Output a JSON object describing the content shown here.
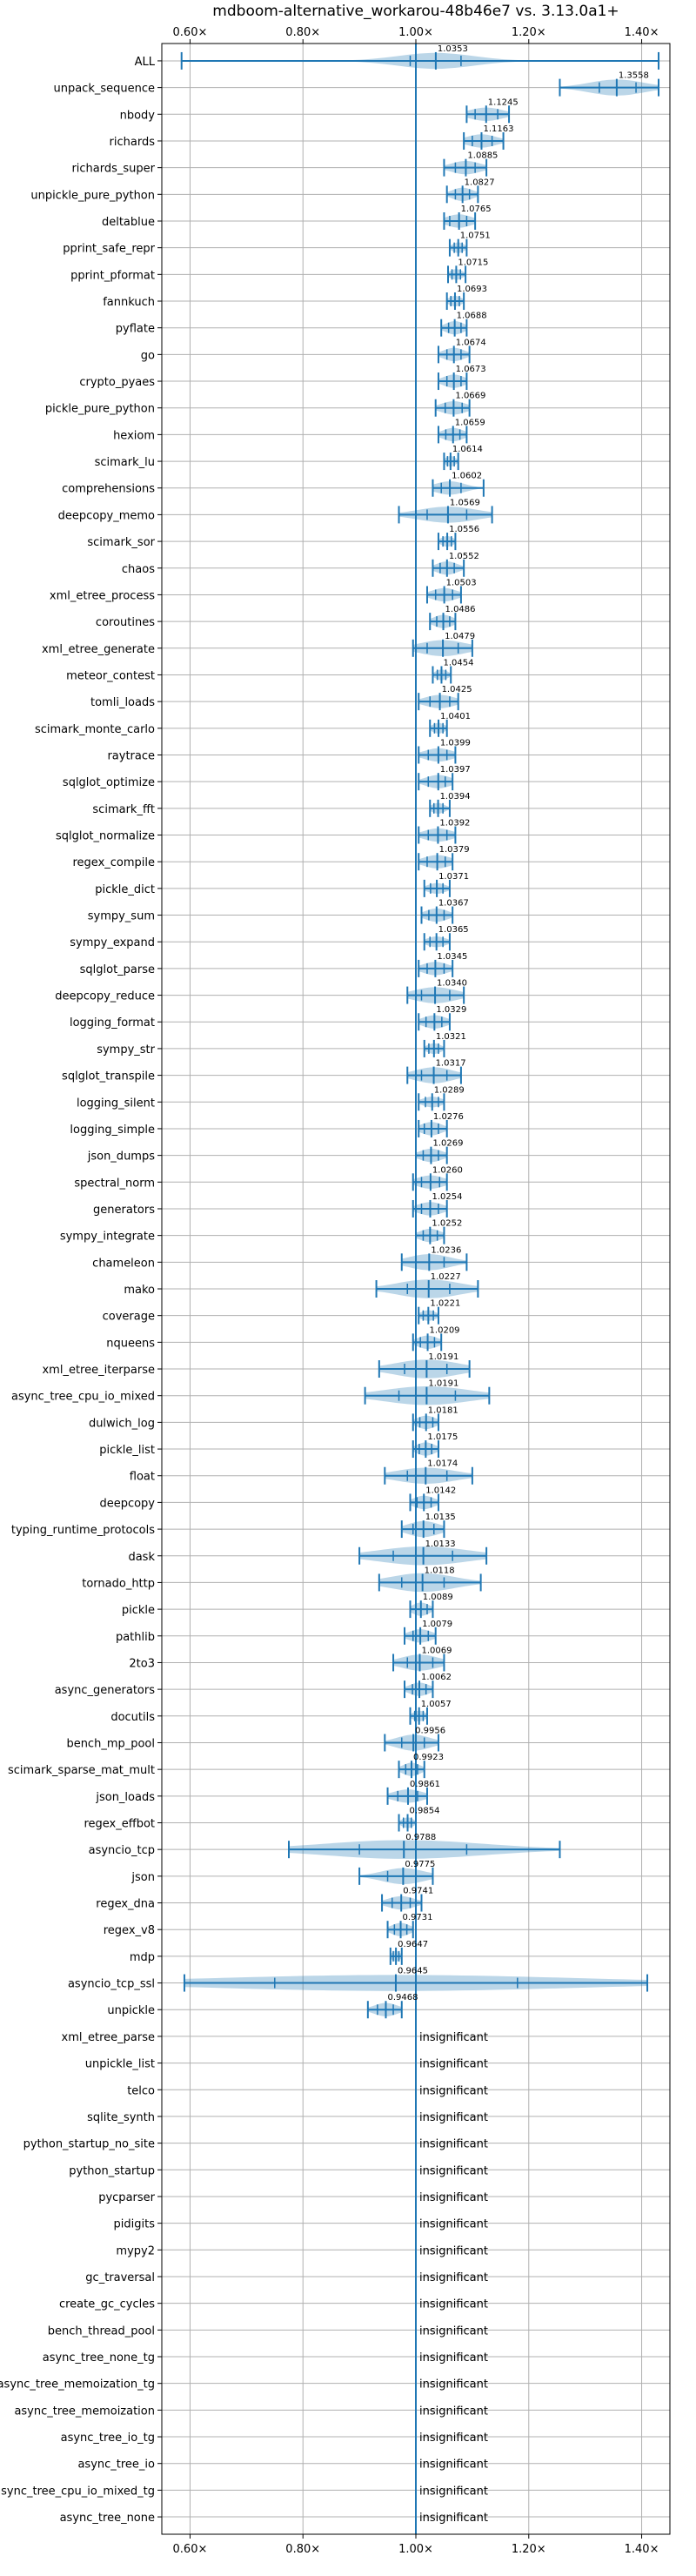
{
  "chart_data": {
    "type": "violin",
    "title": "mdboom-alternative_workarou-48b46e7 vs. 3.13.0a1+",
    "xlim": [
      0.55,
      1.45
    ],
    "x_ticks": [
      0.6,
      0.8,
      1.0,
      1.2,
      1.4
    ],
    "x_tick_labels": [
      "0.60×",
      "0.80×",
      "1.00×",
      "1.20×",
      "1.40×"
    ],
    "reference_value": 1.0,
    "grid": true,
    "insignificant_label": "insignificant",
    "benchmarks": [
      {
        "name": "ALL",
        "median": 1.0353,
        "label": "1.0353",
        "min": 0.585,
        "max": 1.43,
        "q1": 0.99,
        "q3": 1.08,
        "width": 0.6
      },
      {
        "name": "unpack_sequence",
        "median": 1.3558,
        "label": "1.3558",
        "min": 1.255,
        "max": 1.43,
        "q1": 1.325,
        "q3": 1.39,
        "width": 0.6
      },
      {
        "name": "nbody",
        "median": 1.1245,
        "label": "1.1245",
        "min": 1.09,
        "max": 1.165,
        "q1": 1.105,
        "q3": 1.145,
        "width": 0.5
      },
      {
        "name": "richards",
        "median": 1.1163,
        "label": "1.1163",
        "min": 1.085,
        "max": 1.155,
        "q1": 1.1,
        "q3": 1.135,
        "width": 0.5
      },
      {
        "name": "richards_super",
        "median": 1.0885,
        "label": "1.0885",
        "min": 1.05,
        "max": 1.125,
        "q1": 1.07,
        "q3": 1.105,
        "width": 0.5
      },
      {
        "name": "unpickle_pure_python",
        "median": 1.0827,
        "label": "1.0827",
        "min": 1.055,
        "max": 1.11,
        "q1": 1.07,
        "q3": 1.095,
        "width": 0.5
      },
      {
        "name": "deltablue",
        "median": 1.0765,
        "label": "1.0765",
        "min": 1.05,
        "max": 1.105,
        "q1": 1.06,
        "q3": 1.09,
        "width": 0.5
      },
      {
        "name": "pprint_safe_repr",
        "median": 1.0751,
        "label": "1.0751",
        "min": 1.06,
        "max": 1.09,
        "q1": 1.068,
        "q3": 1.082,
        "width": 0.4
      },
      {
        "name": "pprint_pformat",
        "median": 1.0715,
        "label": "1.0715",
        "min": 1.057,
        "max": 1.088,
        "q1": 1.064,
        "q3": 1.079,
        "width": 0.4
      },
      {
        "name": "fannkuch",
        "median": 1.0693,
        "label": "1.0693",
        "min": 1.055,
        "max": 1.085,
        "q1": 1.062,
        "q3": 1.077,
        "width": 0.4
      },
      {
        "name": "pyflate",
        "median": 1.0688,
        "label": "1.0688",
        "min": 1.045,
        "max": 1.09,
        "q1": 1.058,
        "q3": 1.08,
        "width": 0.5
      },
      {
        "name": "go",
        "median": 1.0674,
        "label": "1.0674",
        "min": 1.04,
        "max": 1.095,
        "q1": 1.055,
        "q3": 1.08,
        "width": 0.5
      },
      {
        "name": "crypto_pyaes",
        "median": 1.0673,
        "label": "1.0673",
        "min": 1.04,
        "max": 1.09,
        "q1": 1.055,
        "q3": 1.08,
        "width": 0.5
      },
      {
        "name": "pickle_pure_python",
        "median": 1.0669,
        "label": "1.0669",
        "min": 1.035,
        "max": 1.095,
        "q1": 1.052,
        "q3": 1.082,
        "width": 0.5
      },
      {
        "name": "hexiom",
        "median": 1.0659,
        "label": "1.0659",
        "min": 1.04,
        "max": 1.09,
        "q1": 1.053,
        "q3": 1.078,
        "width": 0.5
      },
      {
        "name": "scimark_lu",
        "median": 1.0614,
        "label": "1.0614",
        "min": 1.05,
        "max": 1.075,
        "q1": 1.056,
        "q3": 1.068,
        "width": 0.4
      },
      {
        "name": "comprehensions",
        "median": 1.0602,
        "label": "1.0602",
        "min": 1.03,
        "max": 1.12,
        "q1": 1.045,
        "q3": 1.08,
        "width": 0.5
      },
      {
        "name": "deepcopy_memo",
        "median": 1.0569,
        "label": "1.0569",
        "min": 0.97,
        "max": 1.135,
        "q1": 1.02,
        "q3": 1.09,
        "width": 0.6
      },
      {
        "name": "scimark_sor",
        "median": 1.0556,
        "label": "1.0556",
        "min": 1.04,
        "max": 1.07,
        "q1": 1.048,
        "q3": 1.063,
        "width": 0.4
      },
      {
        "name": "chaos",
        "median": 1.0552,
        "label": "1.0552",
        "min": 1.03,
        "max": 1.085,
        "q1": 1.043,
        "q3": 1.068,
        "width": 0.5
      },
      {
        "name": "xml_etree_process",
        "median": 1.0503,
        "label": "1.0503",
        "min": 1.02,
        "max": 1.08,
        "q1": 1.035,
        "q3": 1.065,
        "width": 0.5
      },
      {
        "name": "coroutines",
        "median": 1.0486,
        "label": "1.0486",
        "min": 1.025,
        "max": 1.07,
        "q1": 1.037,
        "q3": 1.06,
        "width": 0.5
      },
      {
        "name": "xml_etree_generate",
        "median": 1.0479,
        "label": "1.0479",
        "min": 0.995,
        "max": 1.1,
        "q1": 1.02,
        "q3": 1.075,
        "width": 0.6
      },
      {
        "name": "meteor_contest",
        "median": 1.0454,
        "label": "1.0454",
        "min": 1.03,
        "max": 1.062,
        "q1": 1.038,
        "q3": 1.053,
        "width": 0.4
      },
      {
        "name": "tomli_loads",
        "median": 1.0425,
        "label": "1.0425",
        "min": 1.005,
        "max": 1.075,
        "q1": 1.025,
        "q3": 1.06,
        "width": 0.5
      },
      {
        "name": "scimark_monte_carlo",
        "median": 1.0401,
        "label": "1.0401",
        "min": 1.025,
        "max": 1.055,
        "q1": 1.033,
        "q3": 1.048,
        "width": 0.4
      },
      {
        "name": "raytrace",
        "median": 1.0399,
        "label": "1.0399",
        "min": 1.005,
        "max": 1.07,
        "q1": 1.022,
        "q3": 1.055,
        "width": 0.5
      },
      {
        "name": "sqlglot_optimize",
        "median": 1.0397,
        "label": "1.0397",
        "min": 1.005,
        "max": 1.065,
        "q1": 1.022,
        "q3": 1.052,
        "width": 0.5
      },
      {
        "name": "scimark_fft",
        "median": 1.0394,
        "label": "1.0394",
        "min": 1.025,
        "max": 1.06,
        "q1": 1.032,
        "q3": 1.048,
        "width": 0.4
      },
      {
        "name": "sqlglot_normalize",
        "median": 1.0392,
        "label": "1.0392",
        "min": 1.005,
        "max": 1.07,
        "q1": 1.022,
        "q3": 1.055,
        "width": 0.5
      },
      {
        "name": "regex_compile",
        "median": 1.0379,
        "label": "1.0379",
        "min": 1.005,
        "max": 1.065,
        "q1": 1.02,
        "q3": 1.052,
        "width": 0.5
      },
      {
        "name": "pickle_dict",
        "median": 1.0371,
        "label": "1.0371",
        "min": 1.015,
        "max": 1.06,
        "q1": 1.026,
        "q3": 1.048,
        "width": 0.4
      },
      {
        "name": "sympy_sum",
        "median": 1.0367,
        "label": "1.0367",
        "min": 1.01,
        "max": 1.065,
        "q1": 1.023,
        "q3": 1.05,
        "width": 0.5
      },
      {
        "name": "sympy_expand",
        "median": 1.0365,
        "label": "1.0365",
        "min": 1.015,
        "max": 1.06,
        "q1": 1.025,
        "q3": 1.048,
        "width": 0.4
      },
      {
        "name": "sqlglot_parse",
        "median": 1.0345,
        "label": "1.0345",
        "min": 1.005,
        "max": 1.065,
        "q1": 1.02,
        "q3": 1.05,
        "width": 0.5
      },
      {
        "name": "deepcopy_reduce",
        "median": 1.034,
        "label": "1.0340",
        "min": 0.985,
        "max": 1.085,
        "q1": 1.01,
        "q3": 1.06,
        "width": 0.6
      },
      {
        "name": "logging_format",
        "median": 1.0329,
        "label": "1.0329",
        "min": 1.005,
        "max": 1.06,
        "q1": 1.018,
        "q3": 1.046,
        "width": 0.5
      },
      {
        "name": "sympy_str",
        "median": 1.0321,
        "label": "1.0321",
        "min": 1.015,
        "max": 1.05,
        "q1": 1.023,
        "q3": 1.04,
        "width": 0.4
      },
      {
        "name": "sqlglot_transpile",
        "median": 1.0317,
        "label": "1.0317",
        "min": 0.985,
        "max": 1.08,
        "q1": 1.01,
        "q3": 1.055,
        "width": 0.6
      },
      {
        "name": "logging_silent",
        "median": 1.0289,
        "label": "1.0289",
        "min": 1.005,
        "max": 1.05,
        "q1": 1.017,
        "q3": 1.04,
        "width": 0.4
      },
      {
        "name": "logging_simple",
        "median": 1.0276,
        "label": "1.0276",
        "min": 1.005,
        "max": 1.055,
        "q1": 1.015,
        "q3": 1.04,
        "width": 0.5
      },
      {
        "name": "json_dumps",
        "median": 1.0269,
        "label": "1.0269",
        "min": 1.0,
        "max": 1.055,
        "q1": 1.013,
        "q3": 1.04,
        "width": 0.5
      },
      {
        "name": "spectral_norm",
        "median": 1.026,
        "label": "1.0260",
        "min": 0.995,
        "max": 1.055,
        "q1": 1.01,
        "q3": 1.042,
        "width": 0.5
      },
      {
        "name": "generators",
        "median": 1.0254,
        "label": "1.0254",
        "min": 0.995,
        "max": 1.055,
        "q1": 1.01,
        "q3": 1.04,
        "width": 0.5
      },
      {
        "name": "sympy_integrate",
        "median": 1.0252,
        "label": "1.0252",
        "min": 1.0,
        "max": 1.05,
        "q1": 1.013,
        "q3": 1.038,
        "width": 0.5
      },
      {
        "name": "chameleon",
        "median": 1.0236,
        "label": "1.0236",
        "min": 0.975,
        "max": 1.09,
        "q1": 1.0,
        "q3": 1.05,
        "width": 0.6
      },
      {
        "name": "mako",
        "median": 1.0227,
        "label": "1.0227",
        "min": 0.93,
        "max": 1.11,
        "q1": 0.985,
        "q3": 1.06,
        "width": 0.7
      },
      {
        "name": "coverage",
        "median": 1.0221,
        "label": "1.0221",
        "min": 1.005,
        "max": 1.04,
        "q1": 1.013,
        "q3": 1.031,
        "width": 0.4
      },
      {
        "name": "nqueens",
        "median": 1.0209,
        "label": "1.0209",
        "min": 0.995,
        "max": 1.045,
        "q1": 1.008,
        "q3": 1.033,
        "width": 0.5
      },
      {
        "name": "xml_etree_iterparse",
        "median": 1.0191,
        "label": "1.0191",
        "min": 0.935,
        "max": 1.095,
        "q1": 0.98,
        "q3": 1.055,
        "width": 0.7
      },
      {
        "name": "async_tree_cpu_io_mixed",
        "median": 1.0191,
        "label": "1.0191",
        "min": 0.91,
        "max": 1.13,
        "q1": 0.97,
        "q3": 1.07,
        "width": 0.7
      },
      {
        "name": "dulwich_log",
        "median": 1.0181,
        "label": "1.0181",
        "min": 0.995,
        "max": 1.04,
        "q1": 1.007,
        "q3": 1.03,
        "width": 0.5
      },
      {
        "name": "pickle_list",
        "median": 1.0175,
        "label": "1.0175",
        "min": 0.995,
        "max": 1.04,
        "q1": 1.006,
        "q3": 1.028,
        "width": 0.5
      },
      {
        "name": "float",
        "median": 1.0174,
        "label": "1.0174",
        "min": 0.945,
        "max": 1.1,
        "q1": 0.985,
        "q3": 1.055,
        "width": 0.6
      },
      {
        "name": "deepcopy",
        "median": 1.0142,
        "label": "1.0142",
        "min": 0.99,
        "max": 1.04,
        "q1": 1.002,
        "q3": 1.027,
        "width": 0.5
      },
      {
        "name": "typing_runtime_protocols",
        "median": 1.0135,
        "label": "1.0135",
        "min": 0.975,
        "max": 1.05,
        "q1": 0.995,
        "q3": 1.032,
        "width": 0.6
      },
      {
        "name": "dask",
        "median": 1.0133,
        "label": "1.0133",
        "min": 0.9,
        "max": 1.125,
        "q1": 0.96,
        "q3": 1.065,
        "width": 0.7
      },
      {
        "name": "tornado_http",
        "median": 1.0118,
        "label": "1.0118",
        "min": 0.935,
        "max": 1.115,
        "q1": 0.975,
        "q3": 1.05,
        "width": 0.7
      },
      {
        "name": "pickle",
        "median": 1.0089,
        "label": "1.0089",
        "min": 0.99,
        "max": 1.03,
        "q1": 1.0,
        "q3": 1.02,
        "width": 0.5
      },
      {
        "name": "pathlib",
        "median": 1.0079,
        "label": "1.0079",
        "min": 0.98,
        "max": 1.035,
        "q1": 0.995,
        "q3": 1.022,
        "width": 0.5
      },
      {
        "name": "2to3",
        "median": 1.0069,
        "label": "1.0069",
        "min": 0.96,
        "max": 1.05,
        "q1": 0.985,
        "q3": 1.03,
        "width": 0.6
      },
      {
        "name": "async_generators",
        "median": 1.0062,
        "label": "1.0062",
        "min": 0.98,
        "max": 1.03,
        "q1": 0.994,
        "q3": 1.018,
        "width": 0.5
      },
      {
        "name": "docutils",
        "median": 1.0057,
        "label": "1.0057",
        "min": 0.99,
        "max": 1.02,
        "q1": 0.998,
        "q3": 1.013,
        "width": 0.4
      },
      {
        "name": "bench_mp_pool",
        "median": 0.9956,
        "label": "0.9956",
        "min": 0.945,
        "max": 1.04,
        "q1": 0.975,
        "q3": 1.015,
        "width": 0.6
      },
      {
        "name": "scimark_sparse_mat_mult",
        "median": 0.9923,
        "label": "0.9923",
        "min": 0.97,
        "max": 1.015,
        "q1": 0.982,
        "q3": 1.003,
        "width": 0.5
      },
      {
        "name": "json_loads",
        "median": 0.9861,
        "label": "0.9861",
        "min": 0.95,
        "max": 1.02,
        "q1": 0.968,
        "q3": 1.003,
        "width": 0.5
      },
      {
        "name": "regex_effbot",
        "median": 0.9854,
        "label": "0.9854",
        "min": 0.97,
        "max": 1.0,
        "q1": 0.978,
        "q3": 0.992,
        "width": 0.4
      },
      {
        "name": "asyncio_tcp",
        "median": 0.9788,
        "label": "0.9788",
        "min": 0.775,
        "max": 1.255,
        "q1": 0.9,
        "q3": 1.09,
        "width": 0.7
      },
      {
        "name": "json",
        "median": 0.9775,
        "label": "0.9775",
        "min": 0.9,
        "max": 1.03,
        "q1": 0.95,
        "q3": 1.0,
        "width": 0.6
      },
      {
        "name": "regex_dna",
        "median": 0.9741,
        "label": "0.9741",
        "min": 0.94,
        "max": 1.01,
        "q1": 0.958,
        "q3": 0.99,
        "width": 0.5
      },
      {
        "name": "regex_v8",
        "median": 0.9731,
        "label": "0.9731",
        "min": 0.95,
        "max": 0.995,
        "q1": 0.962,
        "q3": 0.984,
        "width": 0.5
      },
      {
        "name": "mdp",
        "median": 0.9647,
        "label": "0.9647",
        "min": 0.955,
        "max": 0.975,
        "q1": 0.96,
        "q3": 0.97,
        "width": 0.4
      },
      {
        "name": "asyncio_tcp_ssl",
        "median": 0.9645,
        "label": "0.9645",
        "min": 0.59,
        "max": 1.41,
        "q1": 0.75,
        "q3": 1.18,
        "width": 0.6
      },
      {
        "name": "unpickle",
        "median": 0.9468,
        "label": "0.9468",
        "min": 0.915,
        "max": 0.975,
        "q1": 0.932,
        "q3": 0.96,
        "width": 0.5
      },
      {
        "name": "xml_etree_parse",
        "insignificant": true
      },
      {
        "name": "unpickle_list",
        "insignificant": true
      },
      {
        "name": "telco",
        "insignificant": true
      },
      {
        "name": "sqlite_synth",
        "insignificant": true
      },
      {
        "name": "python_startup_no_site",
        "insignificant": true
      },
      {
        "name": "python_startup",
        "insignificant": true
      },
      {
        "name": "pycparser",
        "insignificant": true
      },
      {
        "name": "pidigits",
        "insignificant": true
      },
      {
        "name": "mypy2",
        "insignificant": true
      },
      {
        "name": "gc_traversal",
        "insignificant": true
      },
      {
        "name": "create_gc_cycles",
        "insignificant": true
      },
      {
        "name": "bench_thread_pool",
        "insignificant": true
      },
      {
        "name": "async_tree_none_tg",
        "insignificant": true
      },
      {
        "name": "async_tree_memoization_tg",
        "insignificant": true
      },
      {
        "name": "async_tree_memoization",
        "insignificant": true
      },
      {
        "name": "async_tree_io_tg",
        "insignificant": true
      },
      {
        "name": "async_tree_io",
        "insignificant": true
      },
      {
        "name": "async_tree_cpu_io_mixed_tg",
        "insignificant": true
      },
      {
        "name": "async_tree_none",
        "insignificant": true
      }
    ],
    "colors": {
      "series": "#1f77b4",
      "grid": "#b0b0b0",
      "text": "#000000"
    }
  }
}
